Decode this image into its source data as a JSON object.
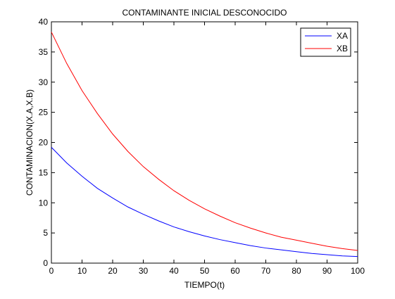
{
  "chart_data": {
    "type": "line",
    "title": "CONTAMINANTE INICIAL DESCONOCIDO",
    "xlabel": "TIEMPO(t)",
    "ylabel": "CONTAMINACION(X.A,X.B)",
    "xlim": [
      0,
      100
    ],
    "ylim": [
      0,
      40
    ],
    "xticks": [
      0,
      10,
      20,
      30,
      40,
      50,
      60,
      70,
      80,
      90,
      100
    ],
    "yticks": [
      0,
      5,
      10,
      15,
      20,
      25,
      30,
      35,
      40
    ],
    "grid": false,
    "legend_position": "top-right",
    "x": [
      0,
      5,
      10,
      15,
      20,
      25,
      30,
      35,
      40,
      45,
      50,
      55,
      60,
      65,
      70,
      75,
      80,
      85,
      90,
      95,
      100
    ],
    "series": [
      {
        "name": "XA",
        "color": "#0000ff",
        "values": [
          19.2,
          16.6,
          14.4,
          12.4,
          10.8,
          9.3,
          8.1,
          7.0,
          6.0,
          5.2,
          4.5,
          3.9,
          3.4,
          2.9,
          2.5,
          2.2,
          1.9,
          1.6,
          1.4,
          1.2,
          1.1
        ]
      },
      {
        "name": "XB",
        "color": "#ff0000",
        "values": [
          38.3,
          33.1,
          28.6,
          24.8,
          21.4,
          18.5,
          16.0,
          13.9,
          12.0,
          10.4,
          9.0,
          7.8,
          6.7,
          5.8,
          5.0,
          4.3,
          3.8,
          3.3,
          2.8,
          2.4,
          2.1
        ]
      }
    ]
  }
}
